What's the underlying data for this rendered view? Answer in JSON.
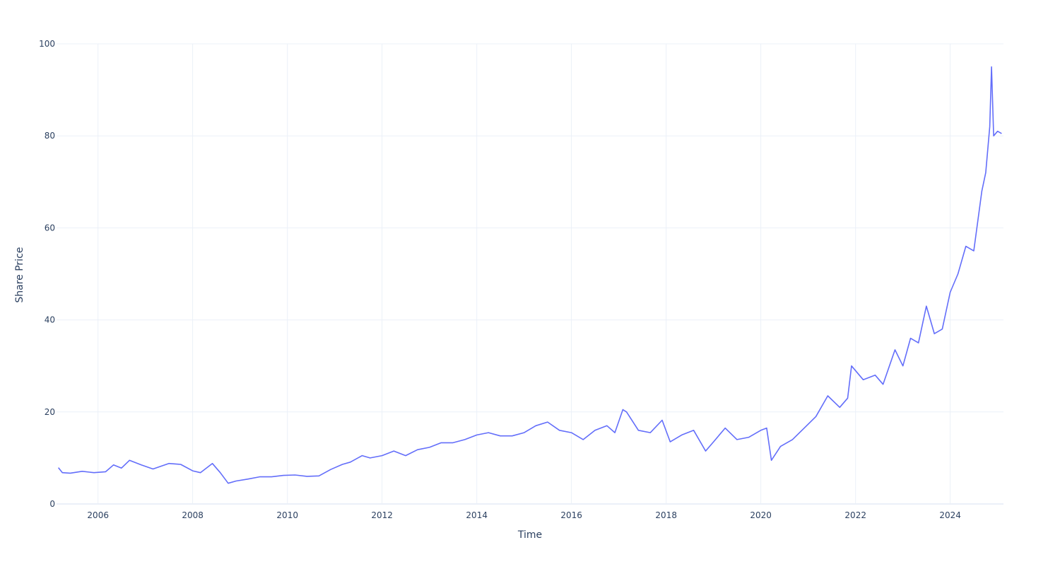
{
  "chart_data": {
    "type": "line",
    "title": "",
    "xlabel": "Time",
    "ylabel": "Share Price",
    "x_range": [
      "2005-02-15",
      "2025-02-15"
    ],
    "ylim": [
      0,
      100
    ],
    "x_ticks": [
      "2006",
      "2008",
      "2010",
      "2012",
      "2014",
      "2016",
      "2018",
      "2020",
      "2022",
      "2024"
    ],
    "y_ticks": [
      "0",
      "20",
      "40",
      "60",
      "80",
      "100"
    ],
    "grid": true,
    "legend": "none",
    "line_color": "#636efa",
    "series": [
      {
        "x": [
          "2005-03-01",
          "2005-04-01",
          "2005-06-01",
          "2005-09-01",
          "2005-12-01",
          "2006-03-01",
          "2006-05-01",
          "2006-07-01",
          "2006-09-01",
          "2006-12-01",
          "2007-03-01",
          "2007-07-01",
          "2007-10-01",
          "2008-01-01",
          "2008-03-01",
          "2008-06-01",
          "2008-08-01",
          "2008-10-01",
          "2008-12-01",
          "2009-03-01",
          "2009-06-01",
          "2009-09-01",
          "2009-12-01",
          "2010-03-01",
          "2010-06-01",
          "2010-09-01",
          "2010-12-01",
          "2011-03-01",
          "2011-05-01",
          "2011-08-01",
          "2011-10-01",
          "2012-01-01",
          "2012-04-01",
          "2012-07-01",
          "2012-10-01",
          "2013-01-01",
          "2013-04-01",
          "2013-07-01",
          "2013-10-01",
          "2014-01-01",
          "2014-04-01",
          "2014-07-01",
          "2014-10-01",
          "2015-01-01",
          "2015-04-01",
          "2015-07-01",
          "2015-10-01",
          "2016-01-01",
          "2016-04-01",
          "2016-07-01",
          "2016-10-01",
          "2016-12-01",
          "2017-02-01",
          "2017-03-01",
          "2017-06-01",
          "2017-09-01",
          "2017-12-01",
          "2018-02-01",
          "2018-05-01",
          "2018-08-01",
          "2018-11-01",
          "2019-01-01",
          "2019-04-01",
          "2019-07-01",
          "2019-10-01",
          "2020-01-01",
          "2020-02-15",
          "2020-03-23",
          "2020-06-01",
          "2020-09-01",
          "2020-12-01",
          "2021-03-01",
          "2021-06-01",
          "2021-09-01",
          "2021-11-01",
          "2021-12-01",
          "2022-03-01",
          "2022-06-01",
          "2022-08-01",
          "2022-11-01",
          "2023-01-01",
          "2023-03-01",
          "2023-05-01",
          "2023-07-01",
          "2023-09-01",
          "2023-11-01",
          "2024-01-01",
          "2024-03-01",
          "2024-05-01",
          "2024-07-01",
          "2024-09-01",
          "2024-10-01",
          "2024-11-01",
          "2024-11-15",
          "2024-12-01",
          "2025-01-01",
          "2025-02-01"
        ],
        "values": [
          7.9,
          6.8,
          6.7,
          7.1,
          6.8,
          7.0,
          8.5,
          7.8,
          9.5,
          8.5,
          7.6,
          8.8,
          8.6,
          7.2,
          6.8,
          8.8,
          6.8,
          4.5,
          5.0,
          5.4,
          5.9,
          5.9,
          6.2,
          6.3,
          6.0,
          6.1,
          7.5,
          8.6,
          9.1,
          10.5,
          10.0,
          10.5,
          11.5,
          10.5,
          11.8,
          12.3,
          13.3,
          13.3,
          14.0,
          15.0,
          15.5,
          14.8,
          14.8,
          15.5,
          17.0,
          17.8,
          16.0,
          15.5,
          14.0,
          16.0,
          17.0,
          15.5,
          20.5,
          20.0,
          16.0,
          15.5,
          18.2,
          13.5,
          15.0,
          16.0,
          11.5,
          13.5,
          16.5,
          14.0,
          14.5,
          16.0,
          16.5,
          9.5,
          12.5,
          14.0,
          16.5,
          19.0,
          23.5,
          21.0,
          23.0,
          30.0,
          27.0,
          28.0,
          26.0,
          33.5,
          30.0,
          36.0,
          35.0,
          43.0,
          37.0,
          38.0,
          46.0,
          50.0,
          56.0,
          55.0,
          68.0,
          72.0,
          82.0,
          95.0,
          80.0,
          81.0,
          80.5
        ]
      }
    ]
  }
}
